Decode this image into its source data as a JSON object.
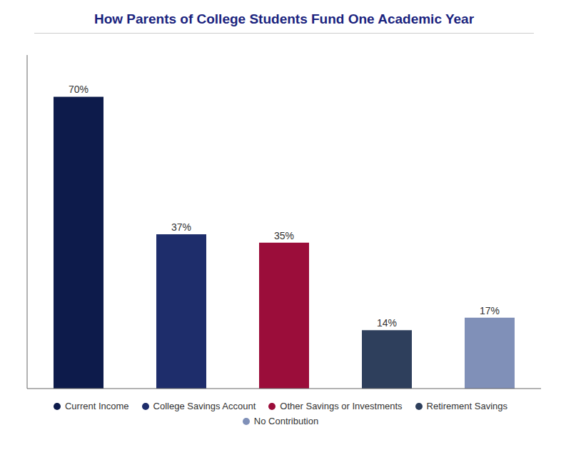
{
  "chart_data": {
    "type": "bar",
    "title": "How Parents of College Students Fund One Academic Year",
    "categories": [
      "Current Income",
      "College Savings Account",
      "Other Savings or Investments",
      "Retirement Savings",
      "No Contribution"
    ],
    "values": [
      70,
      37,
      35,
      14,
      17
    ],
    "value_labels": [
      "70%",
      "37%",
      "35%",
      "14%",
      "17%"
    ],
    "colors": [
      "#0d1b4b",
      "#1e2d6b",
      "#9b0d3a",
      "#2e3f5c",
      "#8090b8"
    ],
    "ylim": [
      0,
      80
    ],
    "yticks": [],
    "grid": false,
    "legend": "bottom",
    "data_labels": true,
    "tick_labels": false
  }
}
